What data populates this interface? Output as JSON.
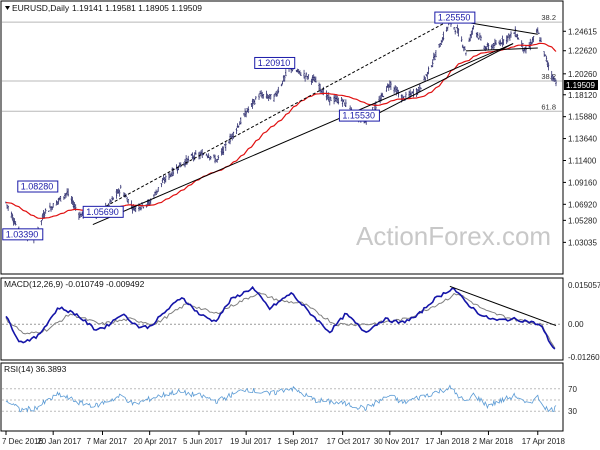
{
  "header": {
    "symbol": "EURUSD,Daily",
    "ohlc": "1.19141 1.19581 1.18905 1.19509"
  },
  "watermark": "ActionForex.com",
  "colors": {
    "candles": "#2e2e6e",
    "ema": "#e01010",
    "trendline": "#000000",
    "macd_line": "#1414a8",
    "macd_signal": "#808080",
    "rsi": "#5b9bd5",
    "annotation_border": "#1a1aa8",
    "grid": "#b8b8b8",
    "price_tag": "#000000"
  },
  "chart_data": [
    {
      "type": "candlestick",
      "title": "EURUSD,Daily",
      "ylim": [
        1.0,
        1.275
      ],
      "y_ticks": [
        "1.24615",
        "1.22620",
        "1.20260",
        "1.18120",
        "1.15880",
        "1.13640",
        "1.11400",
        "1.09160",
        "1.06920",
        "1.05280",
        "1.03035"
      ],
      "last_price": "1.19509",
      "x_ticks": [
        "7 Dec 2016",
        "20 Jan 2017",
        "7 Mar 2017",
        "20 Apr 2017",
        "5 Jun 2017",
        "19 Jul 2017",
        "1 Sep 2017",
        "17 Oct 2017",
        "30 Nov 2017",
        "17 Jan 2018",
        "2 Mar 2018",
        "17 Apr 2018"
      ],
      "close_path": [
        [
          "2016-12-07",
          1.071
        ],
        [
          "2016-12-20",
          1.0394
        ],
        [
          "2017-01-03",
          1.0342
        ],
        [
          "2017-01-12",
          1.061
        ],
        [
          "2017-01-20",
          1.068
        ],
        [
          "2017-02-02",
          1.081
        ],
        [
          "2017-02-14",
          1.058
        ],
        [
          "2017-02-24",
          1.062
        ],
        [
          "2017-03-01",
          1.0569
        ],
        [
          "2017-03-10",
          1.065
        ],
        [
          "2017-03-24",
          1.085
        ],
        [
          "2017-04-05",
          1.065
        ],
        [
          "2017-04-20",
          1.071
        ],
        [
          "2017-05-02",
          1.092
        ],
        [
          "2017-05-16",
          1.107
        ],
        [
          "2017-05-30",
          1.118
        ],
        [
          "2017-06-12",
          1.121
        ],
        [
          "2017-06-22",
          1.114
        ],
        [
          "2017-07-05",
          1.138
        ],
        [
          "2017-07-19",
          1.163
        ],
        [
          "2017-07-31",
          1.181
        ],
        [
          "2017-08-14",
          1.178
        ],
        [
          "2017-08-29",
          1.2091
        ],
        [
          "2017-09-08",
          1.203
        ],
        [
          "2017-09-21",
          1.196
        ],
        [
          "2017-10-04",
          1.177
        ],
        [
          "2017-10-17",
          1.175
        ],
        [
          "2017-10-27",
          1.161
        ],
        [
          "2017-11-07",
          1.1553
        ],
        [
          "2017-11-20",
          1.174
        ],
        [
          "2017-11-30",
          1.193
        ],
        [
          "2017-12-12",
          1.177
        ],
        [
          "2017-12-27",
          1.186
        ],
        [
          "2018-01-05",
          1.205
        ],
        [
          "2018-01-25",
          1.2555
        ],
        [
          "2018-02-02",
          1.245
        ],
        [
          "2018-02-09",
          1.225
        ],
        [
          "2018-02-16",
          1.251
        ],
        [
          "2018-02-27",
          1.229
        ],
        [
          "2018-03-09",
          1.232
        ],
        [
          "2018-03-27",
          1.245
        ],
        [
          "2018-04-06",
          1.225
        ],
        [
          "2018-04-17",
          1.246
        ],
        [
          "2018-04-24",
          1.22
        ],
        [
          "2018-05-01",
          1.199
        ],
        [
          "2018-05-04",
          1.1951
        ]
      ],
      "annotations": [
        "1.25550",
        "1.20910",
        "1.15530",
        "1.08280",
        "1.05690",
        "1.03390"
      ],
      "retracements": [
        {
          "label": "38.2",
          "value": 1.2555
        },
        {
          "label": "38.2",
          "value": 1.1953
        },
        {
          "label": "61.8",
          "value": 1.1643
        }
      ],
      "indicator": "EMA"
    },
    {
      "type": "line",
      "title": "MACD(12,26,9) -0.010749 -0.009492",
      "y_ticks": [
        "0.015057",
        "0.00",
        "-0.012607"
      ],
      "ylim": [
        -0.0126,
        0.0151
      ],
      "macd": [
        [
          "2016-12-07",
          0.003
        ],
        [
          "2016-12-20",
          -0.007
        ],
        [
          "2017-01-05",
          -0.005
        ],
        [
          "2017-01-25",
          0.0065
        ],
        [
          "2017-02-10",
          0.004
        ],
        [
          "2017-02-28",
          -0.002
        ],
        [
          "2017-03-10",
          -0.001
        ],
        [
          "2017-03-25",
          0.004
        ],
        [
          "2017-04-10",
          -0.001
        ],
        [
          "2017-04-20",
          -0.001
        ],
        [
          "2017-05-05",
          0.005
        ],
        [
          "2017-05-20",
          0.0105
        ],
        [
          "2017-06-05",
          0.004
        ],
        [
          "2017-06-20",
          0.001
        ],
        [
          "2017-07-05",
          0.0095
        ],
        [
          "2017-07-25",
          0.014
        ],
        [
          "2017-08-10",
          0.006
        ],
        [
          "2017-08-30",
          0.012
        ],
        [
          "2017-09-15",
          0.005
        ],
        [
          "2017-10-05",
          -0.003
        ],
        [
          "2017-10-20",
          0.004
        ],
        [
          "2017-11-07",
          -0.003
        ],
        [
          "2017-11-25",
          0.002
        ],
        [
          "2017-12-10",
          0.0005
        ],
        [
          "2017-12-25",
          0.003
        ],
        [
          "2018-01-10",
          0.0095
        ],
        [
          "2018-01-28",
          0.014
        ],
        [
          "2018-02-10",
          0.008
        ],
        [
          "2018-02-25",
          0.003
        ],
        [
          "2018-03-10",
          0.0015
        ],
        [
          "2018-03-25",
          0.002
        ],
        [
          "2018-04-10",
          0.001
        ],
        [
          "2018-04-20",
          -0.0005
        ],
        [
          "2018-04-27",
          -0.006
        ],
        [
          "2018-05-04",
          -0.0107
        ]
      ],
      "signal": [
        [
          "2016-12-07",
          0.002
        ],
        [
          "2016-12-25",
          -0.004
        ],
        [
          "2017-01-15",
          -0.002
        ],
        [
          "2017-02-05",
          0.004
        ],
        [
          "2017-03-05",
          0.0
        ],
        [
          "2017-04-01",
          0.002
        ],
        [
          "2017-04-25",
          0.0
        ],
        [
          "2017-05-25",
          0.008
        ],
        [
          "2017-06-20",
          0.004
        ],
        [
          "2017-07-30",
          0.012
        ],
        [
          "2017-08-20",
          0.009
        ],
        [
          "2017-09-10",
          0.008
        ],
        [
          "2017-10-10",
          0.0
        ],
        [
          "2017-11-10",
          0.0
        ],
        [
          "2017-12-15",
          0.002
        ],
        [
          "2018-01-15",
          0.008
        ],
        [
          "2018-02-01",
          0.012
        ],
        [
          "2018-02-28",
          0.005
        ],
        [
          "2018-03-25",
          0.002
        ],
        [
          "2018-04-20",
          0.0
        ],
        [
          "2018-05-04",
          -0.0095
        ]
      ],
      "trendline": [
        [
          "2018-01-25",
          0.0146
        ],
        [
          "2018-05-04",
          -0.0005
        ]
      ]
    },
    {
      "type": "line",
      "title": "RSI(14) 36.3893",
      "y_ticks": [
        "100",
        "70",
        "50",
        "30",
        "0"
      ],
      "ylim": [
        0,
        100
      ],
      "rsi": [
        [
          "2016-12-07",
          50
        ],
        [
          "2016-12-20",
          32
        ],
        [
          "2017-01-03",
          35
        ],
        [
          "2017-01-25",
          60
        ],
        [
          "2017-02-14",
          45
        ],
        [
          "2017-03-01",
          40
        ],
        [
          "2017-03-25",
          58
        ],
        [
          "2017-04-05",
          42
        ],
        [
          "2017-04-25",
          55
        ],
        [
          "2017-05-15",
          65
        ],
        [
          "2017-06-05",
          58
        ],
        [
          "2017-06-22",
          48
        ],
        [
          "2017-07-19",
          70
        ],
        [
          "2017-08-10",
          60
        ],
        [
          "2017-08-29",
          72
        ],
        [
          "2017-09-21",
          50
        ],
        [
          "2017-10-17",
          44
        ],
        [
          "2017-11-07",
          35
        ],
        [
          "2017-11-30",
          58
        ],
        [
          "2017-12-12",
          45
        ],
        [
          "2018-01-05",
          60
        ],
        [
          "2018-01-25",
          72
        ],
        [
          "2018-02-09",
          45
        ],
        [
          "2018-02-16",
          60
        ],
        [
          "2018-03-01",
          40
        ],
        [
          "2018-03-27",
          58
        ],
        [
          "2018-04-06",
          42
        ],
        [
          "2018-04-17",
          55
        ],
        [
          "2018-04-27",
          30
        ],
        [
          "2018-05-04",
          36.4
        ]
      ]
    }
  ]
}
